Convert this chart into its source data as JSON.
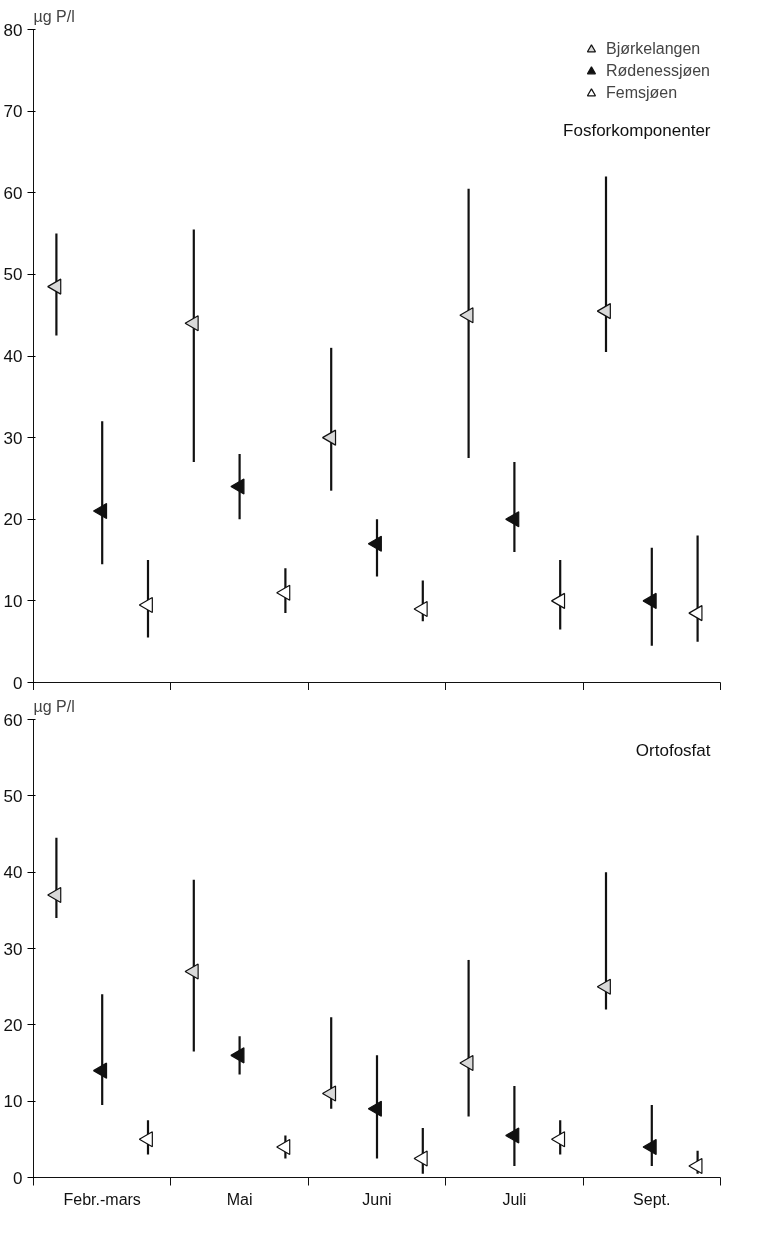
{
  "chart_data": [
    {
      "type": "scatter",
      "title": "Fosforkomponenter",
      "ylabel": "µg P/l",
      "categories": [
        null,
        null,
        null,
        null,
        null,
        null,
        null,
        null,
        null,
        null,
        null,
        null,
        null,
        null,
        null
      ],
      "ylim": [
        0,
        80
      ],
      "yticks": [
        0,
        10,
        20,
        30,
        40,
        50,
        60,
        70,
        80
      ],
      "grid": false,
      "legend": "top right",
      "tick_labels": "y",
      "marker": "triangle",
      "series": [
        {
          "name": "Bjørkelangen",
          "color": "#d9d9d9",
          "values": [
            48.5,
            null,
            null,
            44,
            null,
            null,
            30,
            null,
            null,
            45,
            null,
            null,
            45.5,
            null,
            null
          ],
          "errors": [
            [
              42.5,
              55
            ],
            null,
            null,
            [
              27,
              55.5
            ],
            null,
            null,
            [
              23.5,
              41
            ],
            null,
            null,
            [
              27.5,
              60.5
            ],
            null,
            null,
            [
              40.5,
              62
            ],
            null,
            null
          ]
        },
        {
          "name": "Rødenessjøen",
          "color": "#111111",
          "values": [
            null,
            21,
            null,
            null,
            24,
            null,
            null,
            17,
            null,
            null,
            20,
            null,
            null,
            10,
            null
          ],
          "errors": [
            null,
            [
              14.5,
              32
            ],
            null,
            null,
            [
              20,
              28
            ],
            null,
            null,
            [
              13,
              20
            ],
            null,
            null,
            [
              16,
              27
            ],
            null,
            null,
            [
              4.5,
              16.5
            ],
            null
          ]
        },
        {
          "name": "Femsjøen",
          "color": "#ffffff",
          "values": [
            null,
            null,
            9.5,
            null,
            null,
            11,
            null,
            null,
            9,
            null,
            null,
            10,
            null,
            null,
            8.5
          ],
          "errors": [
            null,
            null,
            [
              5.5,
              15
            ],
            null,
            null,
            [
              8.5,
              14
            ],
            null,
            null,
            [
              7.5,
              12.5
            ],
            null,
            null,
            [
              6.5,
              15
            ],
            null,
            null,
            [
              5,
              18
            ]
          ]
        }
      ]
    },
    {
      "type": "scatter",
      "title": "Ortofosfat",
      "ylabel": "µg P/l",
      "categories": [
        null,
        "Febr.-mars",
        null,
        null,
        "Mai",
        null,
        null,
        "Juni",
        null,
        null,
        "Juli",
        null,
        null,
        "Sept.",
        null
      ],
      "ylim": [
        0,
        60
      ],
      "yticks": [
        0,
        10,
        20,
        30,
        40,
        50,
        60
      ],
      "grid": false,
      "legend": false,
      "marker": "triangle",
      "series": [
        {
          "color": "#d9d9d9",
          "values": [
            37,
            null,
            null,
            27,
            null,
            null,
            11,
            null,
            null,
            15,
            null,
            null,
            25,
            null,
            null
          ],
          "errors": [
            [
              34,
              44.5
            ],
            null,
            null,
            [
              16.5,
              39
            ],
            null,
            null,
            [
              9,
              21
            ],
            null,
            null,
            [
              8,
              28.5
            ],
            null,
            null,
            [
              22,
              40
            ],
            null,
            null
          ]
        },
        {
          "color": "#111111",
          "values": [
            null,
            14,
            null,
            null,
            16,
            null,
            null,
            9,
            null,
            null,
            5.5,
            null,
            null,
            4,
            null
          ],
          "errors": [
            null,
            [
              9.5,
              24
            ],
            null,
            null,
            [
              13.5,
              18.5
            ],
            null,
            null,
            [
              2.5,
              16
            ],
            null,
            null,
            [
              1.5,
              12
            ],
            null,
            null,
            [
              1.5,
              9.5
            ],
            null
          ]
        },
        {
          "color": "#ffffff",
          "values": [
            null,
            null,
            5,
            null,
            null,
            4,
            null,
            null,
            2.5,
            null,
            null,
            5,
            null,
            null,
            1.5
          ],
          "errors": [
            null,
            null,
            [
              3,
              7.5
            ],
            null,
            null,
            [
              2.5,
              5.5
            ],
            null,
            null,
            [
              0.5,
              6.5
            ],
            null,
            null,
            [
              3,
              7.5
            ],
            null,
            null,
            [
              0.5,
              3.5
            ]
          ]
        }
      ]
    }
  ]
}
